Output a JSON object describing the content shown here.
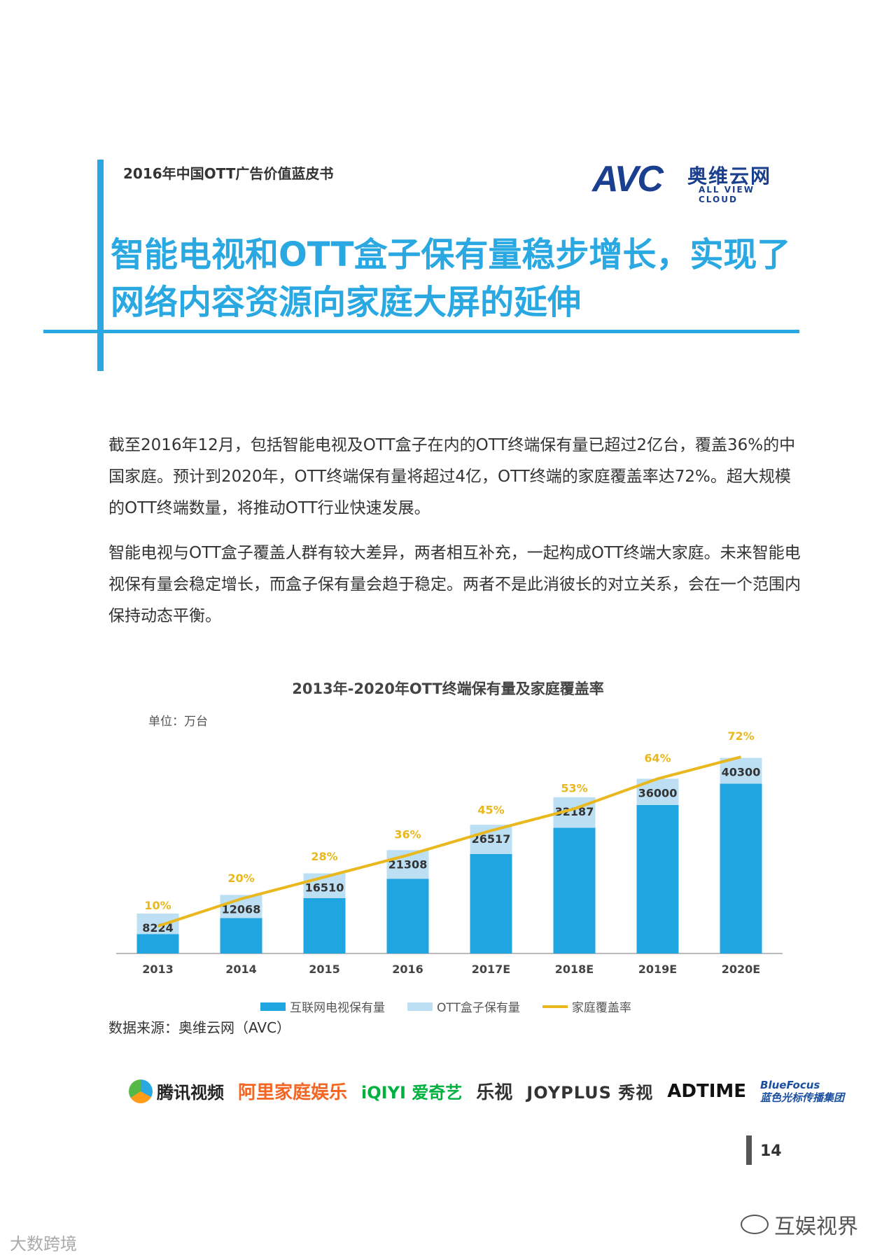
{
  "header": {
    "doc_title": "2016年中国OTT广告价值蓝皮书",
    "logo": {
      "mark": "AVC",
      "cn": "奥维云网",
      "en": "ALL VIEW CLOUD"
    }
  },
  "headline": {
    "line1": "智能电视和OTT盒子保有量稳步增长，实现了",
    "line2": "网络内容资源向家庭大屏的延伸"
  },
  "body": {
    "p1": "截至2016年12月，包括智能电视及OTT盒子在内的OTT终端保有量已超过2亿台，覆盖36%的中国家庭。预计到2020年，OTT终端保有量将超过4亿，OTT终端的家庭覆盖率达72%。超大规模的OTT终端数量，将推动OTT行业快速发展。",
    "p2": "智能电视与OTT盒子覆盖人群有较大差异，两者相互补充，一起构成OTT终端大家庭。未来智能电视保有量会稳定增长，而盒子保有量会趋于稳定。两者不是此消彼长的对立关系，会在一个范围内保持动态平衡。"
  },
  "chart_data": {
    "type": "bar",
    "title": "2013年-2020年OTT终端保有量及家庭覆盖率",
    "unit_label": "单位：万台",
    "categories": [
      "2013",
      "2014",
      "2015",
      "2016",
      "2017E",
      "2018E",
      "2019E",
      "2020E"
    ],
    "totals": [
      8224,
      12068,
      16510,
      21308,
      26517,
      32187,
      36000,
      40300
    ],
    "series": [
      {
        "name": "互联网电视保有量",
        "values": [
          4000,
          7300,
          11400,
          15400,
          20500,
          25900,
          30600,
          35000
        ],
        "color": "#1fa6e0"
      },
      {
        "name": "OTT盒子保有量",
        "values": [
          4224,
          4768,
          5110,
          5908,
          6017,
          6287,
          5400,
          5300
        ],
        "color": "#bcdff4"
      },
      {
        "name": "家庭覆盖率",
        "values": [
          10,
          20,
          28,
          36,
          45,
          53,
          64,
          72
        ],
        "labels": [
          "10%",
          "20%",
          "28%",
          "36%",
          "45%",
          "53%",
          "64%",
          "72%"
        ],
        "color": "#e8b81e",
        "kind": "line"
      }
    ],
    "ylim": [
      0,
      45000
    ],
    "y2lim": [
      0,
      80
    ],
    "grid": false,
    "legend": "bottom"
  },
  "source": "数据来源：奥维云网（AVC）",
  "partners": {
    "tencent": "腾讯视频",
    "ali": "阿里家庭娱乐",
    "iqiyi": "iQIYI 爱奇艺",
    "letv": "乐视",
    "joyplus": "JOYPLUS 秀视",
    "adtime": "ADTIME",
    "bluefocus_en": "BlueFocus",
    "bluefocus_cn": "蓝色光标传播集团"
  },
  "page_number": "14",
  "watermarks": {
    "left": "大数跨境",
    "right": "互娱视界"
  }
}
